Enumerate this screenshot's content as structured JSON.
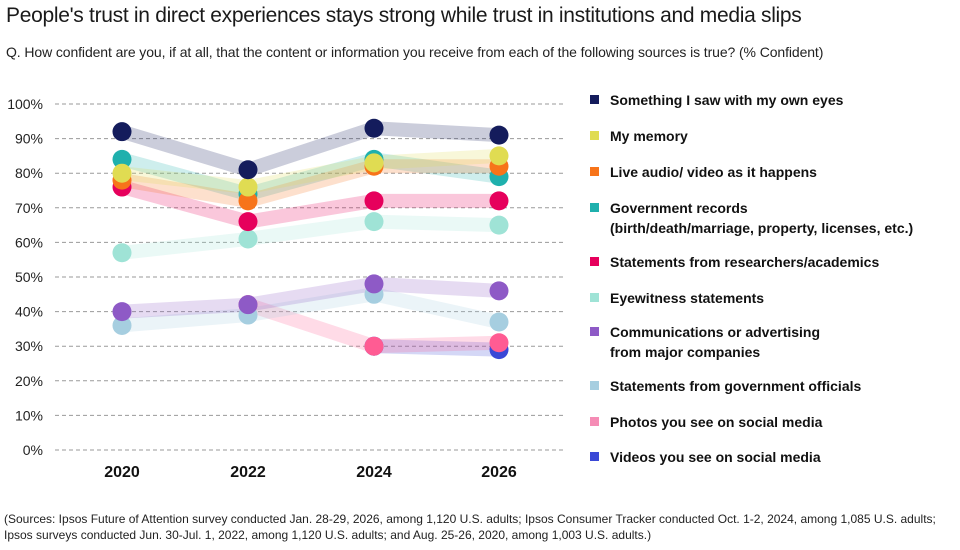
{
  "title": "People's trust in direct experiences stays strong while trust in institutions and media slips",
  "subtitle": "Q. How confident are you, if at all, that the content or information you receive from each of the following sources is true? (% Confident)",
  "footnote": "(Sources: Ipsos Future of Attention survey conducted Jan. 28-29, 2026, among 1,120 U.S. adults; Ipsos Consumer Tracker conducted Oct. 1-2, 2024, among 1,085 U.S. adults; Ipsos surveys conducted Jun. 30-Jul. 1, 2022, among 1,120 U.S. adults; and Aug. 25-26, 2020, among 1,003 U.S. adults.)",
  "chart_data": {
    "type": "line",
    "title": "People's trust in direct experiences stays strong while trust in institutions and media slips",
    "xlabel": "",
    "ylabel": "% Confident",
    "x": [
      "2020",
      "2022",
      "2024",
      "2026"
    ],
    "ylim": [
      0,
      100
    ],
    "yticks": [
      "0%",
      "10%",
      "20%",
      "30%",
      "40%",
      "50%",
      "60%",
      "70%",
      "80%",
      "90%",
      "100%"
    ],
    "grid": true,
    "legend_position": "right",
    "series": [
      {
        "name": "Something I saw with my own eyes",
        "color": "#141c5c",
        "values": [
          92,
          81,
          93,
          91
        ]
      },
      {
        "name": "My memory",
        "color": "#e0dc52",
        "values": [
          80,
          76,
          83,
          85
        ]
      },
      {
        "name": "Live audio/ video as it happens",
        "color": "#f7741a",
        "values": [
          78,
          72,
          82,
          82
        ]
      },
      {
        "name": "Government records\n(birth/death/marriage, property, licenses, etc.)",
        "color": "#1fb0ad",
        "values": [
          84,
          74,
          84,
          79
        ]
      },
      {
        "name": "Statements from researchers/academics",
        "color": "#e6005c",
        "values": [
          76,
          66,
          72,
          72
        ]
      },
      {
        "name": "Eyewitness statements",
        "color": "#9fe3d6",
        "values": [
          57,
          61,
          66,
          65
        ]
      },
      {
        "name": "Communications or advertising\nfrom major companies",
        "color": "#8e5ac6",
        "values": [
          40,
          42,
          48,
          46
        ]
      },
      {
        "name": "Statements from government officials",
        "color": "#a6cee0",
        "values": [
          36,
          39,
          45,
          37
        ]
      },
      {
        "name": "Photos you see on social media",
        "color": "#ff5c93",
        "legend_color": "#f58cb5",
        "values": [
          null,
          42,
          30,
          31
        ]
      },
      {
        "name": "Videos you see on social media",
        "color": "#3a48d6",
        "values": [
          null,
          null,
          30,
          29
        ]
      }
    ]
  }
}
